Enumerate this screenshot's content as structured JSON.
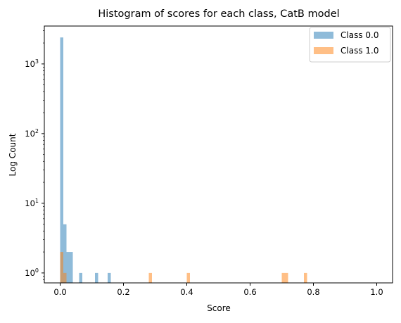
{
  "chart_data": {
    "type": "bar",
    "title": "Histogram of scores for each class, CatB model",
    "xlabel": "Score",
    "ylabel": "Log Count",
    "xlim": [
      -0.05,
      1.05
    ],
    "ylim": [
      0.72,
      3500
    ],
    "yscale": "log",
    "bin_width": 0.01,
    "xticks": [
      {
        "value": 0.0,
        "label": "0.0"
      },
      {
        "value": 0.2,
        "label": "0.2"
      },
      {
        "value": 0.4,
        "label": "0.4"
      },
      {
        "value": 0.6,
        "label": "0.6"
      },
      {
        "value": 0.8,
        "label": "0.8"
      },
      {
        "value": 1.0,
        "label": "1.0"
      }
    ],
    "yticks": [
      {
        "value": 1,
        "base": "10",
        "exp": "0"
      },
      {
        "value": 10,
        "base": "10",
        "exp": "1"
      },
      {
        "value": 100,
        "base": "10",
        "exp": "2"
      },
      {
        "value": 1000,
        "base": "10",
        "exp": "3"
      }
    ],
    "grid": false,
    "legend_position": "top-right",
    "series": [
      {
        "name": "Class 0.0",
        "color": "#1f77b4",
        "alpha": 0.5,
        "bins": [
          {
            "x": 0.0,
            "count": 2400
          },
          {
            "x": 0.01,
            "count": 5
          },
          {
            "x": 0.02,
            "count": 2
          },
          {
            "x": 0.03,
            "count": 2
          },
          {
            "x": 0.06,
            "count": 1
          },
          {
            "x": 0.11,
            "count": 1
          },
          {
            "x": 0.15,
            "count": 1
          }
        ]
      },
      {
        "name": "Class 1.0",
        "color": "#ff7f0e",
        "alpha": 0.5,
        "bins": [
          {
            "x": 0.0,
            "count": 2
          },
          {
            "x": 0.01,
            "count": 1
          },
          {
            "x": 0.28,
            "count": 1
          },
          {
            "x": 0.4,
            "count": 1
          },
          {
            "x": 0.7,
            "count": 1
          },
          {
            "x": 0.71,
            "count": 1
          },
          {
            "x": 0.77,
            "count": 1
          }
        ]
      }
    ]
  }
}
